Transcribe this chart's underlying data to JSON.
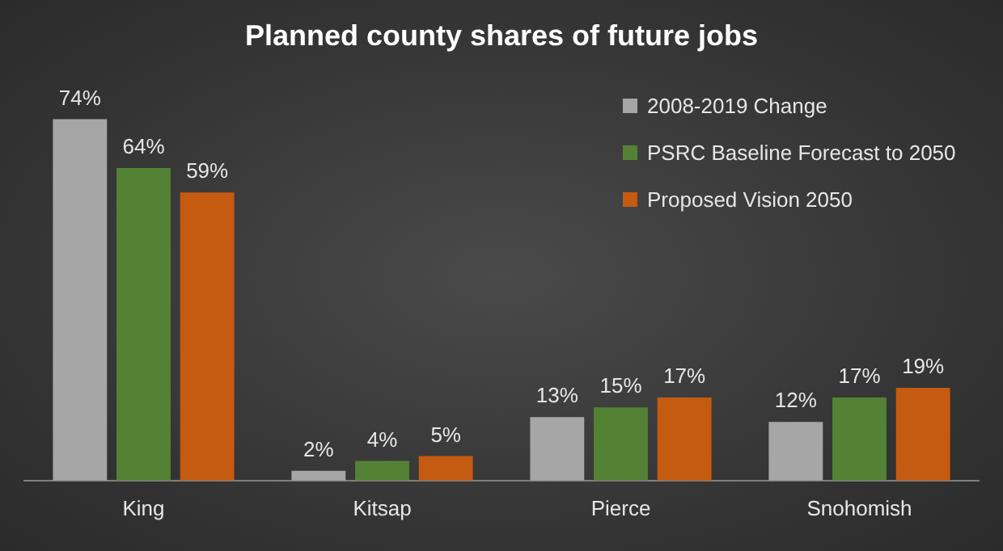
{
  "chart_data": {
    "type": "bar",
    "title": "Planned county shares of future jobs",
    "categories": [
      "King",
      "Kitsap",
      "Pierce",
      "Snohomish"
    ],
    "series": [
      {
        "name": "2008-2019 Change",
        "color": "#a6a6a6",
        "values": [
          74,
          2,
          13,
          12
        ],
        "value_labels": [
          "74%",
          "2%",
          "13%",
          "12%"
        ]
      },
      {
        "name": "PSRC Baseline Forecast to 2050",
        "color": "#548235",
        "values": [
          64,
          4,
          15,
          17
        ],
        "value_labels": [
          "64%",
          "4%",
          "15%",
          "17%"
        ]
      },
      {
        "name": "Proposed Vision 2050",
        "color": "#c55a11",
        "values": [
          59,
          5,
          17,
          19
        ],
        "value_labels": [
          "59%",
          "5%",
          "17%",
          "19%"
        ]
      }
    ],
    "legend": "top right",
    "grid": false
  }
}
